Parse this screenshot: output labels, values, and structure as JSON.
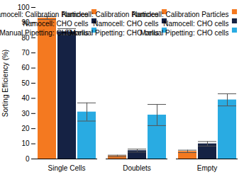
{
  "chart_data": {
    "type": "bar",
    "categories": [
      "Single Cells",
      "Doublets",
      "Empty"
    ],
    "series": [
      {
        "name": "Namocell: Calibration Particles",
        "color": "#F47920",
        "values": [
          93,
          2,
          5
        ],
        "errors": [
          1,
          0.5,
          0.8
        ]
      },
      {
        "name": "Namocell: CHO cells",
        "color": "#152244",
        "values": [
          84,
          5.5,
          10
        ],
        "errors": [
          2,
          1,
          1.5
        ]
      },
      {
        "name": "Manual Pipetting: CHO cells",
        "color": "#29ABE2",
        "values": [
          31,
          29,
          39
        ],
        "errors": [
          6,
          7,
          4
        ]
      }
    ],
    "ylabel": "Sorting Efficiency (%)",
    "ylim": [
      0,
      100
    ],
    "yticks": [
      0,
      10,
      20,
      30,
      40,
      50,
      60,
      70,
      80,
      90,
      100
    ],
    "grid": false,
    "legend": "upper right"
  }
}
